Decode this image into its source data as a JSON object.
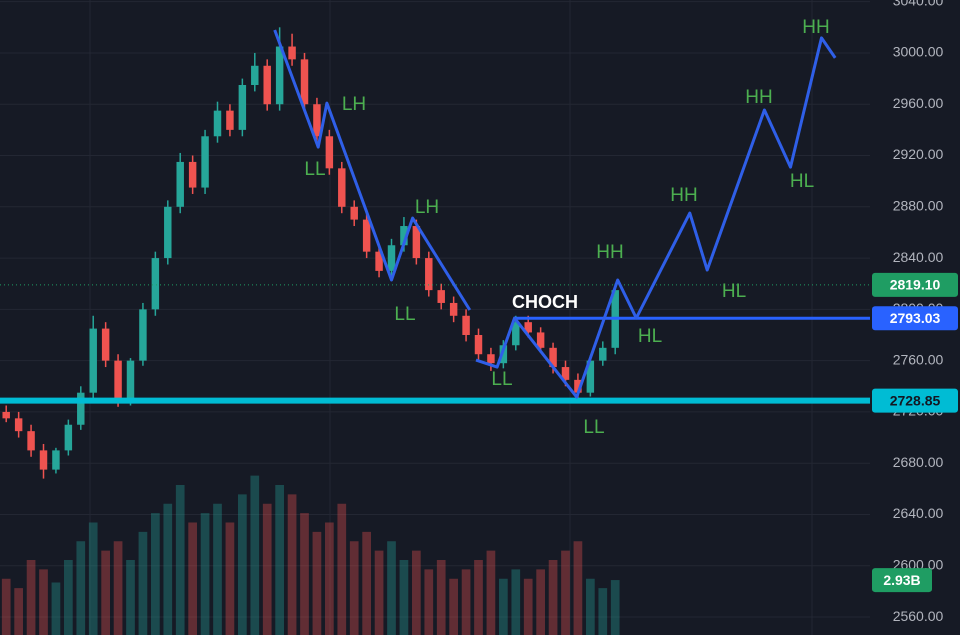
{
  "chart_data": {
    "type": "candlestick",
    "xlim": [
      0,
      70
    ],
    "ylim": [
      2546,
      3041.3
    ],
    "yticks": [
      {
        "value": 2560,
        "label": "2560.00"
      },
      {
        "value": 2600,
        "label": "2600.00"
      },
      {
        "value": 2640,
        "label": "2640.00"
      },
      {
        "value": 2680,
        "label": "2680.00"
      },
      {
        "value": 2720,
        "label": "2720.00"
      },
      {
        "value": 2760,
        "label": "2760.00"
      },
      {
        "value": 2800,
        "label": "2800.00"
      },
      {
        "value": 2840,
        "label": "2840.00"
      },
      {
        "value": 2880,
        "label": "2880.00"
      },
      {
        "value": 2920,
        "label": "2920.00"
      },
      {
        "value": 2960,
        "label": "2960.00"
      },
      {
        "value": 3000,
        "label": "3000.00"
      },
      {
        "value": 3040,
        "label": "3040.00"
      }
    ],
    "grid": true,
    "up_color": "#26a69a",
    "down_color": "#ef5350",
    "open": [
      2720,
      2715,
      2705,
      2690,
      2675,
      2690,
      2710,
      2735,
      2785,
      2760,
      2728,
      2760,
      2800,
      2840,
      2880,
      2915,
      2895,
      2935,
      2955,
      2940,
      2975,
      2990,
      2960,
      3005,
      2995,
      2960,
      2935,
      2910,
      2880,
      2870,
      2845,
      2830,
      2850,
      2865,
      2840,
      2815,
      2805,
      2795,
      2780,
      2765,
      2758,
      2772,
      2790,
      2782,
      2770,
      2755,
      2745,
      2735,
      2760,
      2770
    ],
    "high": [
      2725,
      2720,
      2710,
      2695,
      2692,
      2714,
      2740,
      2795,
      2790,
      2765,
      2762,
      2805,
      2845,
      2885,
      2922,
      2920,
      2940,
      2962,
      2960,
      2980,
      3000,
      2995,
      3020,
      3015,
      3000,
      2965,
      2940,
      2915,
      2885,
      2875,
      2850,
      2855,
      2872,
      2870,
      2845,
      2820,
      2810,
      2800,
      2785,
      2770,
      2776,
      2795,
      2795,
      2786,
      2774,
      2760,
      2750,
      2764,
      2775,
      2820
    ],
    "low": [
      2712,
      2700,
      2685,
      2668,
      2672,
      2686,
      2706,
      2730,
      2755,
      2724,
      2725,
      2756,
      2795,
      2835,
      2875,
      2890,
      2890,
      2930,
      2935,
      2935,
      2970,
      2955,
      2955,
      2990,
      2955,
      2930,
      2905,
      2875,
      2865,
      2840,
      2825,
      2826,
      2845,
      2835,
      2810,
      2800,
      2790,
      2775,
      2760,
      2752,
      2754,
      2768,
      2778,
      2766,
      2750,
      2740,
      2730,
      2732,
      2756,
      2765
    ],
    "close": [
      2715,
      2705,
      2690,
      2675,
      2690,
      2710,
      2735,
      2785,
      2760,
      2728,
      2760,
      2800,
      2840,
      2880,
      2915,
      2895,
      2935,
      2955,
      2940,
      2975,
      2990,
      2960,
      3005,
      2995,
      2960,
      2935,
      2910,
      2880,
      2870,
      2845,
      2830,
      2850,
      2865,
      2840,
      2815,
      2805,
      2795,
      2780,
      2765,
      2758,
      2772,
      2790,
      2782,
      2770,
      2755,
      2745,
      2735,
      2760,
      2770,
      2815
    ],
    "volume": {
      "values": [
        3,
        2.5,
        4,
        3.5,
        2.8,
        4,
        5,
        6,
        4.5,
        5,
        4,
        5.5,
        6.5,
        7,
        8,
        6,
        6.5,
        7,
        6,
        7.5,
        8.5,
        7,
        8,
        7.5,
        6.5,
        5.5,
        6,
        7,
        5,
        5.5,
        4.5,
        5,
        4,
        4.5,
        3.5,
        4,
        3,
        3.5,
        4,
        4.5,
        3,
        3.5,
        3,
        3.5,
        4,
        4.5,
        5,
        3,
        2.5,
        2.93
      ],
      "ylim": [
        0,
        8.8
      ],
      "last_label": "2.93B",
      "color": "#4caf50"
    },
    "levels": [
      {
        "value": 2819.1,
        "label": "2819.10",
        "color": "#1f9d63",
        "style": "dotted"
      },
      {
        "value": 2793.03,
        "label": "2793.03",
        "color": "#2962ff",
        "style": "solid"
      },
      {
        "value": 2728.85,
        "label": "2728.85",
        "color": "#00bcd4",
        "style": "thick"
      }
    ],
    "structure": {
      "color": "#2f5fe8",
      "x": [
        22.1,
        25.6,
        26.3,
        31.5,
        33.2,
        37.8,
        null,
        38.3,
        40.0,
        41.4,
        46.4,
        49.7,
        51.2,
        55.5,
        56.9,
        61.5,
        63.6,
        66.1,
        67.2
      ],
      "y": [
        3017.9,
        2926.6,
        2960.9,
        2822.9,
        2871.2,
        2799.5,
        null,
        2760.4,
        2755.0,
        2793.2,
        2731.6,
        2822.9,
        2793.2,
        2875.1,
        2830.7,
        2955.5,
        2911.0,
        3011.7,
        2996.1
      ]
    },
    "annotations": [
      "LH",
      "LL",
      "LH",
      "LL",
      "CHOCH",
      "LL",
      "LL",
      "HH",
      "HL",
      "HH",
      "HL",
      "HH",
      "HL",
      "HH"
    ]
  }
}
